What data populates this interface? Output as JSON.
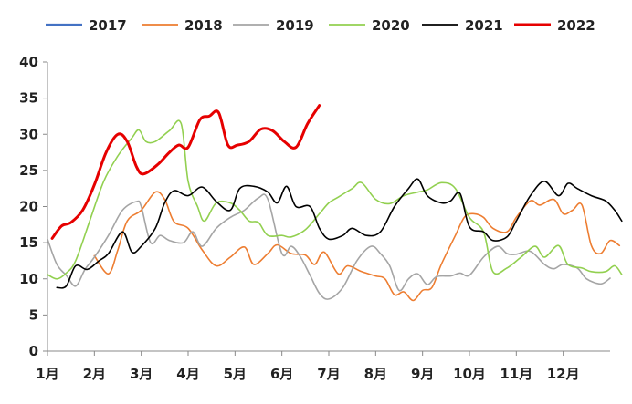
{
  "chart_data": {
    "type": "line",
    "title": "",
    "xlabel": "",
    "ylabel": "",
    "ylim": [
      0,
      40
    ],
    "yticks": [
      0,
      5,
      10,
      15,
      20,
      25,
      30,
      35,
      40
    ],
    "categories": [
      "1月",
      "2月",
      "3月",
      "4月",
      "5月",
      "6月",
      "7月",
      "8月",
      "9月",
      "10月",
      "11月",
      "12月"
    ],
    "x_range": [
      1,
      13
    ],
    "grid": false,
    "legend_position": "top",
    "series": [
      {
        "name": "2017",
        "color": "#4472C4",
        "width": 2.2,
        "points": []
      },
      {
        "name": "2018",
        "color": "#ED7D31",
        "width": 1.6,
        "points": [
          [
            2.0,
            13.2
          ],
          [
            2.3,
            10.7
          ],
          [
            2.5,
            14.0
          ],
          [
            2.7,
            18.0
          ],
          [
            3.0,
            19.5
          ],
          [
            3.3,
            22.0
          ],
          [
            3.5,
            21.0
          ],
          [
            3.7,
            17.9
          ],
          [
            4.0,
            17.0
          ],
          [
            4.3,
            14.0
          ],
          [
            4.6,
            11.8
          ],
          [
            4.9,
            13.0
          ],
          [
            5.2,
            14.4
          ],
          [
            5.4,
            12.0
          ],
          [
            5.7,
            13.5
          ],
          [
            5.9,
            14.7
          ],
          [
            6.2,
            13.5
          ],
          [
            6.5,
            13.3
          ],
          [
            6.7,
            12.0
          ],
          [
            6.9,
            13.7
          ],
          [
            7.2,
            10.7
          ],
          [
            7.4,
            11.8
          ],
          [
            7.7,
            11.0
          ],
          [
            8.0,
            10.4
          ],
          [
            8.2,
            10.0
          ],
          [
            8.4,
            7.8
          ],
          [
            8.6,
            8.2
          ],
          [
            8.8,
            7.0
          ],
          [
            9.0,
            8.4
          ],
          [
            9.2,
            8.8
          ],
          [
            9.4,
            12.0
          ],
          [
            9.7,
            16.0
          ],
          [
            9.9,
            18.6
          ],
          [
            10.1,
            19.0
          ],
          [
            10.3,
            18.5
          ],
          [
            10.5,
            17.0
          ],
          [
            10.8,
            16.5
          ],
          [
            11.0,
            18.5
          ],
          [
            11.3,
            20.8
          ],
          [
            11.5,
            20.2
          ],
          [
            11.8,
            21.0
          ],
          [
            12.0,
            19.0
          ],
          [
            12.2,
            19.5
          ],
          [
            12.4,
            20.2
          ],
          [
            12.6,
            14.6
          ],
          [
            12.8,
            13.5
          ],
          [
            13.0,
            15.3
          ],
          [
            13.2,
            14.6
          ]
        ]
      },
      {
        "name": "2019",
        "color": "#A5A5A5",
        "width": 1.6,
        "points": [
          [
            1.0,
            15.5
          ],
          [
            1.2,
            12.0
          ],
          [
            1.4,
            10.5
          ],
          [
            1.6,
            9.0
          ],
          [
            1.8,
            11.3
          ],
          [
            2.0,
            13.0
          ],
          [
            2.3,
            16.0
          ],
          [
            2.6,
            19.5
          ],
          [
            2.9,
            20.7
          ],
          [
            3.0,
            20.0
          ],
          [
            3.2,
            15.0
          ],
          [
            3.4,
            16.0
          ],
          [
            3.6,
            15.3
          ],
          [
            3.9,
            15.0
          ],
          [
            4.1,
            16.5
          ],
          [
            4.3,
            14.5
          ],
          [
            4.6,
            17.0
          ],
          [
            4.9,
            18.5
          ],
          [
            5.2,
            19.5
          ],
          [
            5.5,
            21.2
          ],
          [
            5.7,
            21.0
          ],
          [
            6.0,
            13.5
          ],
          [
            6.2,
            14.5
          ],
          [
            6.4,
            13.0
          ],
          [
            6.6,
            10.5
          ],
          [
            6.8,
            8.0
          ],
          [
            7.0,
            7.2
          ],
          [
            7.3,
            8.8
          ],
          [
            7.6,
            12.5
          ],
          [
            7.9,
            14.5
          ],
          [
            8.1,
            13.5
          ],
          [
            8.3,
            11.8
          ],
          [
            8.5,
            8.4
          ],
          [
            8.7,
            10.0
          ],
          [
            8.9,
            10.7
          ],
          [
            9.1,
            9.2
          ],
          [
            9.3,
            10.3
          ],
          [
            9.6,
            10.4
          ],
          [
            9.8,
            10.8
          ],
          [
            10.0,
            10.5
          ],
          [
            10.3,
            13.0
          ],
          [
            10.6,
            14.5
          ],
          [
            10.8,
            13.5
          ],
          [
            11.0,
            13.4
          ],
          [
            11.3,
            13.8
          ],
          [
            11.6,
            12.0
          ],
          [
            11.8,
            11.4
          ],
          [
            12.0,
            12.0
          ],
          [
            12.3,
            11.5
          ],
          [
            12.5,
            10.0
          ],
          [
            12.8,
            9.3
          ],
          [
            13.0,
            10.1
          ]
        ]
      },
      {
        "name": "2020",
        "color": "#92D050",
        "width": 1.6,
        "points": [
          [
            1.0,
            10.6
          ],
          [
            1.2,
            10.0
          ],
          [
            1.4,
            10.8
          ],
          [
            1.6,
            12.5
          ],
          [
            1.9,
            18.0
          ],
          [
            2.2,
            23.5
          ],
          [
            2.5,
            27.0
          ],
          [
            2.8,
            29.5
          ],
          [
            2.95,
            30.6
          ],
          [
            3.1,
            29.0
          ],
          [
            3.3,
            29.0
          ],
          [
            3.6,
            30.5
          ],
          [
            3.85,
            31.5
          ],
          [
            4.0,
            23.5
          ],
          [
            4.2,
            20.0
          ],
          [
            4.35,
            18.0
          ],
          [
            4.6,
            20.5
          ],
          [
            4.9,
            20.5
          ],
          [
            5.1,
            19.5
          ],
          [
            5.3,
            18.0
          ],
          [
            5.5,
            17.8
          ],
          [
            5.7,
            16.0
          ],
          [
            6.0,
            16.0
          ],
          [
            6.2,
            15.8
          ],
          [
            6.5,
            16.8
          ],
          [
            6.8,
            19.0
          ],
          [
            7.0,
            20.5
          ],
          [
            7.2,
            21.3
          ],
          [
            7.5,
            22.5
          ],
          [
            7.7,
            23.3
          ],
          [
            8.0,
            21.0
          ],
          [
            8.3,
            20.4
          ],
          [
            8.6,
            21.5
          ],
          [
            8.9,
            22.0
          ],
          [
            9.1,
            22.3
          ],
          [
            9.4,
            23.3
          ],
          [
            9.7,
            22.5
          ],
          [
            10.0,
            18.5
          ],
          [
            10.3,
            16.5
          ],
          [
            10.5,
            11.0
          ],
          [
            10.8,
            11.5
          ],
          [
            11.1,
            13.0
          ],
          [
            11.4,
            14.5
          ],
          [
            11.6,
            13.0
          ],
          [
            11.9,
            14.6
          ],
          [
            12.1,
            12.0
          ],
          [
            12.4,
            11.5
          ],
          [
            12.6,
            11.0
          ],
          [
            12.9,
            11.0
          ],
          [
            13.1,
            11.8
          ],
          [
            13.25,
            10.6
          ]
        ]
      },
      {
        "name": "2021",
        "color": "#000000",
        "width": 1.6,
        "points": [
          [
            1.2,
            8.8
          ],
          [
            1.4,
            9.0
          ],
          [
            1.6,
            11.8
          ],
          [
            1.85,
            11.3
          ],
          [
            2.1,
            12.5
          ],
          [
            2.3,
            13.5
          ],
          [
            2.6,
            16.5
          ],
          [
            2.8,
            13.7
          ],
          [
            3.0,
            14.5
          ],
          [
            3.3,
            17.0
          ],
          [
            3.5,
            20.5
          ],
          [
            3.7,
            22.2
          ],
          [
            4.0,
            21.5
          ],
          [
            4.3,
            22.7
          ],
          [
            4.6,
            20.7
          ],
          [
            4.9,
            19.5
          ],
          [
            5.1,
            22.5
          ],
          [
            5.4,
            22.8
          ],
          [
            5.7,
            22.0
          ],
          [
            5.9,
            20.5
          ],
          [
            6.1,
            22.8
          ],
          [
            6.3,
            20.0
          ],
          [
            6.6,
            20.0
          ],
          [
            6.8,
            17.0
          ],
          [
            7.0,
            15.5
          ],
          [
            7.3,
            16.0
          ],
          [
            7.5,
            17.0
          ],
          [
            7.8,
            16.0
          ],
          [
            8.1,
            16.5
          ],
          [
            8.4,
            20.0
          ],
          [
            8.7,
            22.5
          ],
          [
            8.9,
            23.8
          ],
          [
            9.1,
            21.5
          ],
          [
            9.4,
            20.5
          ],
          [
            9.6,
            20.8
          ],
          [
            9.8,
            21.8
          ],
          [
            10.0,
            17.2
          ],
          [
            10.3,
            16.5
          ],
          [
            10.5,
            15.3
          ],
          [
            10.8,
            15.8
          ],
          [
            11.0,
            18.0
          ],
          [
            11.3,
            21.5
          ],
          [
            11.6,
            23.5
          ],
          [
            11.9,
            21.5
          ],
          [
            12.1,
            23.2
          ],
          [
            12.3,
            22.5
          ],
          [
            12.6,
            21.5
          ],
          [
            12.9,
            20.8
          ],
          [
            13.1,
            19.5
          ],
          [
            13.25,
            18.0
          ]
        ]
      },
      {
        "name": "2022",
        "color": "#E60000",
        "width": 3.0,
        "points": [
          [
            1.1,
            15.6
          ],
          [
            1.3,
            17.3
          ],
          [
            1.5,
            17.8
          ],
          [
            1.75,
            19.5
          ],
          [
            2.0,
            23.0
          ],
          [
            2.25,
            27.5
          ],
          [
            2.5,
            30.0
          ],
          [
            2.7,
            29.0
          ],
          [
            2.9,
            25.5
          ],
          [
            3.05,
            24.5
          ],
          [
            3.35,
            25.8
          ],
          [
            3.6,
            27.5
          ],
          [
            3.8,
            28.5
          ],
          [
            4.0,
            28.2
          ],
          [
            4.25,
            32.0
          ],
          [
            4.45,
            32.5
          ],
          [
            4.65,
            33.0
          ],
          [
            4.85,
            28.5
          ],
          [
            5.05,
            28.5
          ],
          [
            5.3,
            29.0
          ],
          [
            5.55,
            30.7
          ],
          [
            5.8,
            30.5
          ],
          [
            6.05,
            29.0
          ],
          [
            6.3,
            28.2
          ],
          [
            6.55,
            31.5
          ],
          [
            6.8,
            34.0
          ]
        ]
      }
    ]
  }
}
